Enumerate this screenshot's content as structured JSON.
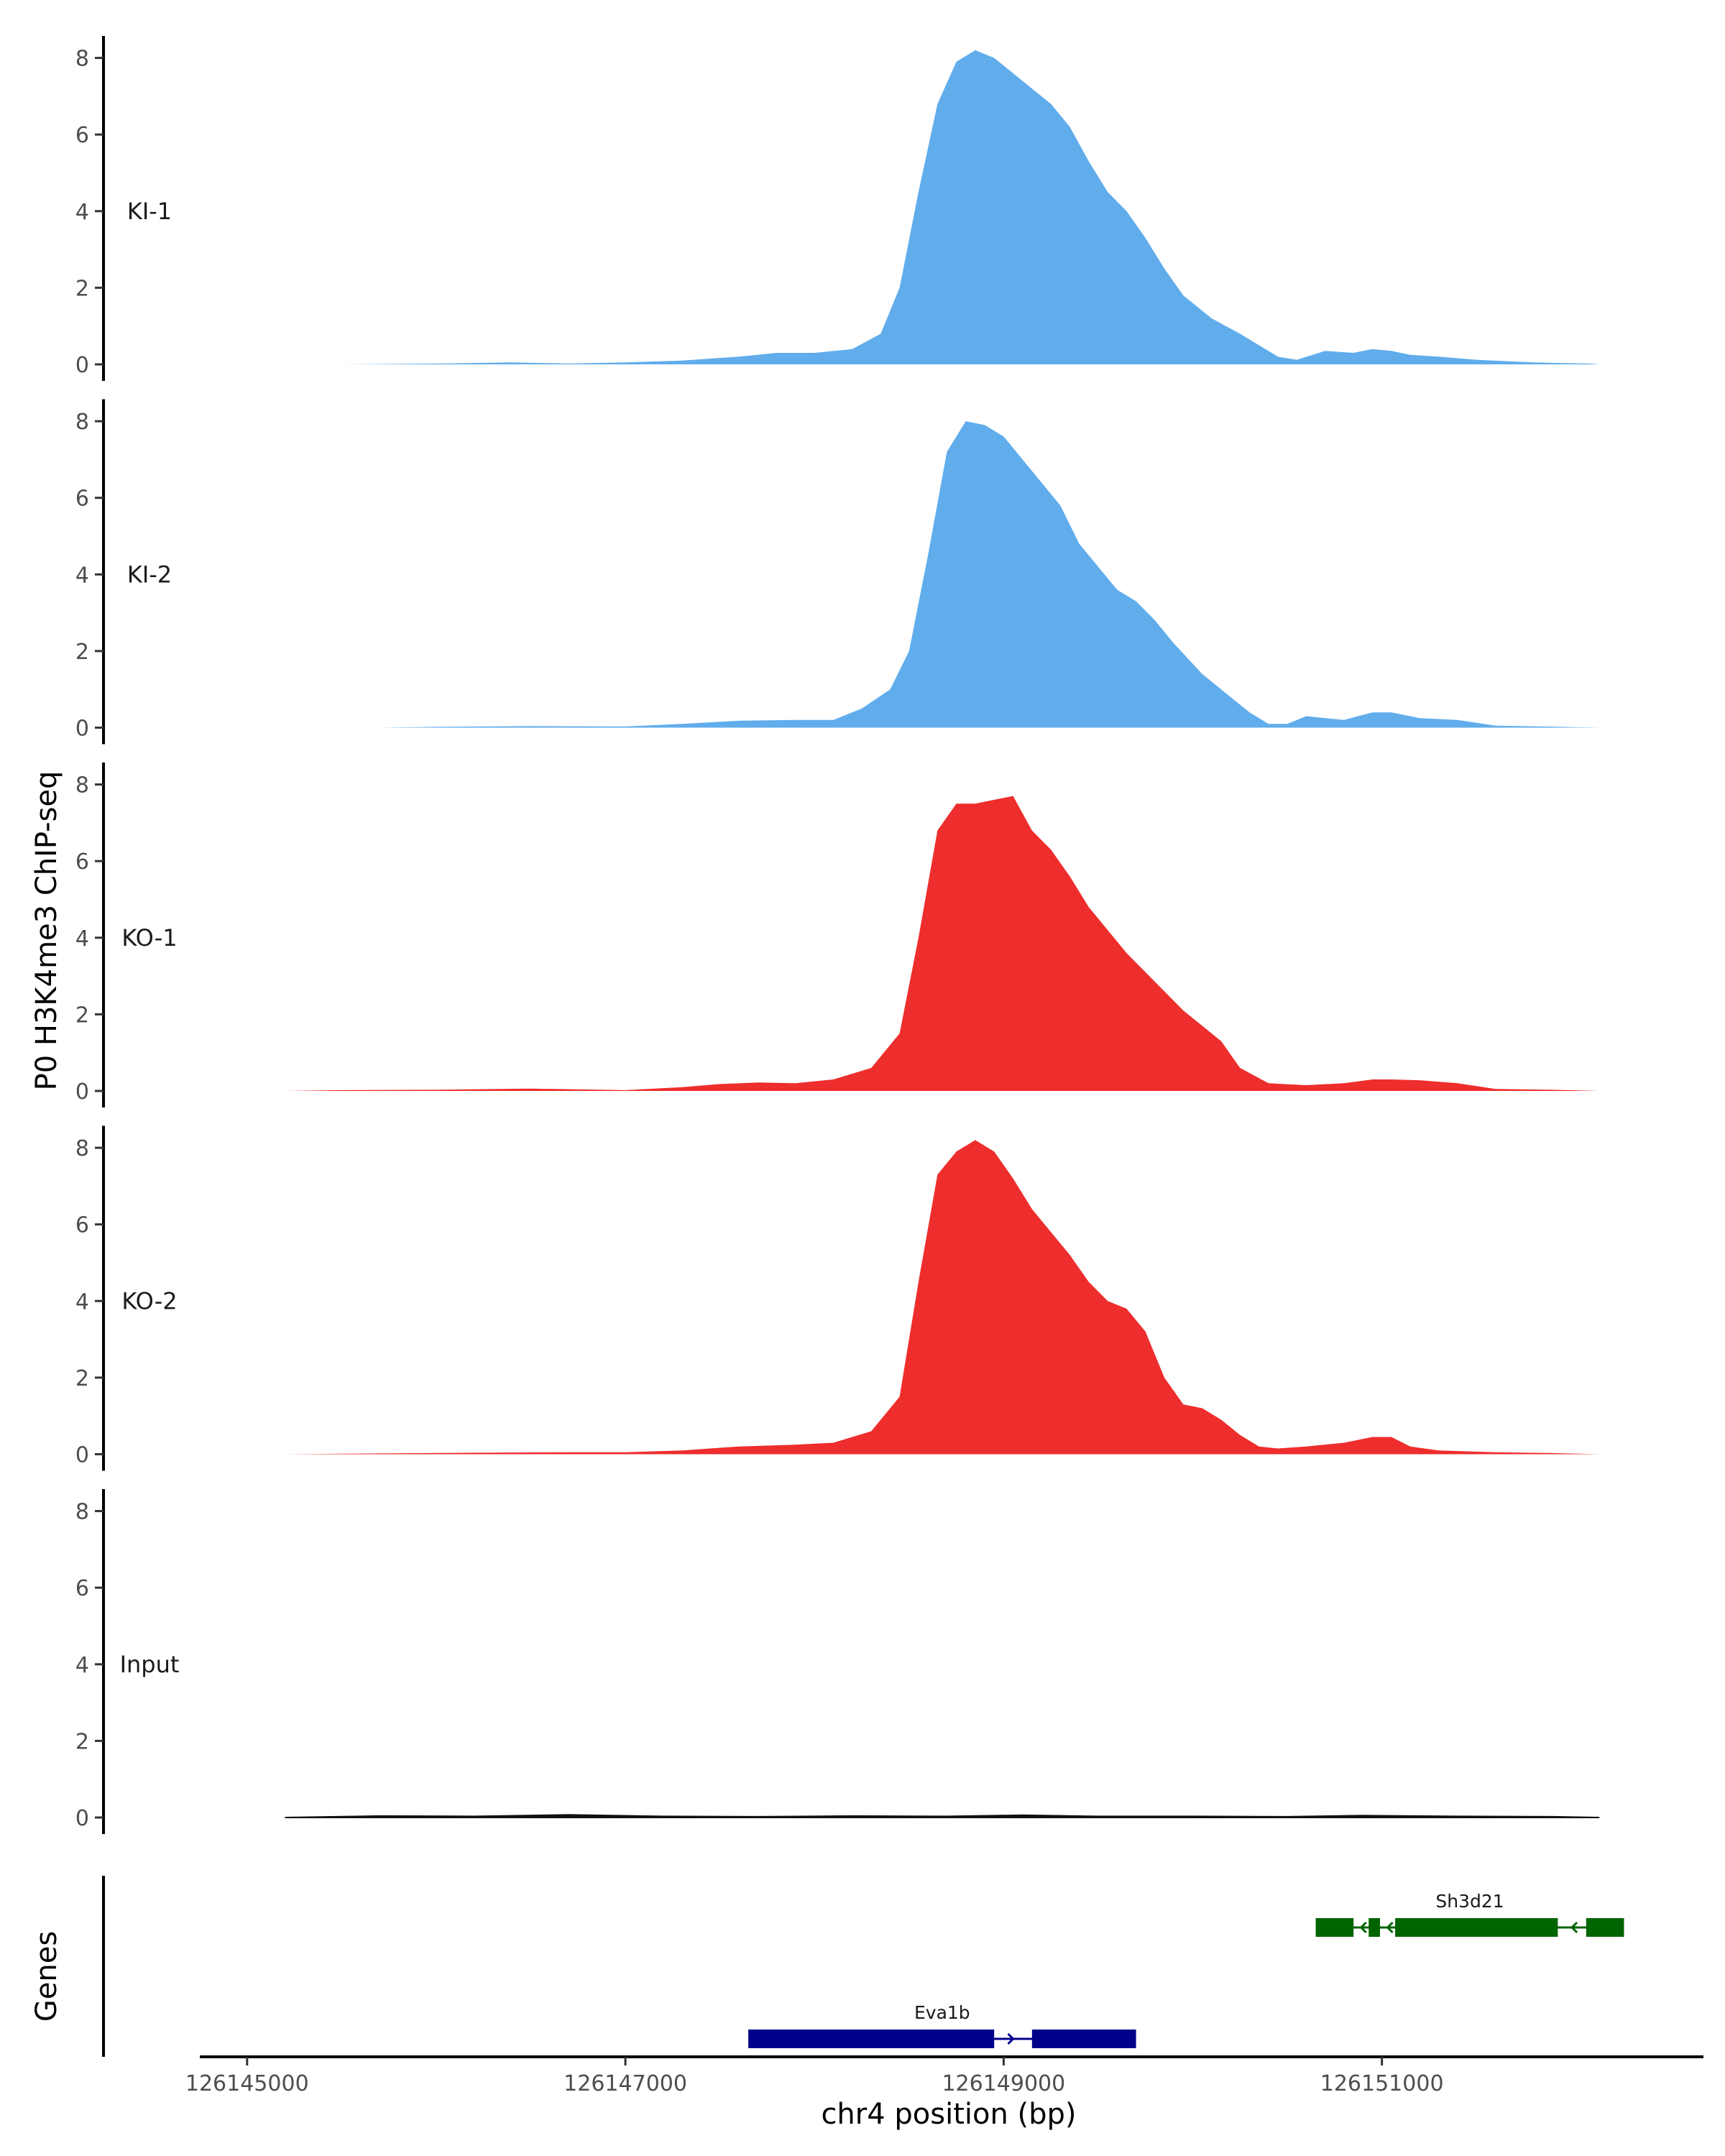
{
  "chart_data": {
    "type": "area",
    "ylabel": "P0 H3K4me3 ChIP-seq",
    "xlabel": "chr4 position (bp)",
    "gene_track_label": "Genes",
    "ylim": [
      0,
      8.5
    ],
    "y_ticks": [
      "0",
      "2",
      "4",
      "6",
      "8"
    ],
    "y_tick_values": [
      0,
      2,
      4,
      6,
      8
    ],
    "xlim": [
      126144750,
      126152700
    ],
    "x_ticks": [
      "126145000",
      "126147000",
      "126149000",
      "126151000"
    ],
    "x_tick_values": [
      126145000,
      126147000,
      126149000,
      126151000
    ],
    "grid": false,
    "legend": "none",
    "tracks": [
      {
        "name": "KI-1",
        "color": "#61adec",
        "points": [
          [
            126145200,
            0
          ],
          [
            126145500,
            0
          ],
          [
            126146000,
            0.02
          ],
          [
            126146400,
            0.05
          ],
          [
            126146700,
            0.02
          ],
          [
            126147000,
            0.05
          ],
          [
            126147300,
            0.1
          ],
          [
            126147600,
            0.2
          ],
          [
            126147800,
            0.3
          ],
          [
            126148000,
            0.3
          ],
          [
            126148200,
            0.4
          ],
          [
            126148350,
            0.8
          ],
          [
            126148450,
            2.0
          ],
          [
            126148550,
            4.5
          ],
          [
            126148650,
            6.8
          ],
          [
            126148750,
            7.9
          ],
          [
            126148850,
            8.2
          ],
          [
            126148950,
            8.0
          ],
          [
            126149050,
            7.6
          ],
          [
            126149150,
            7.2
          ],
          [
            126149250,
            6.8
          ],
          [
            126149350,
            6.2
          ],
          [
            126149450,
            5.3
          ],
          [
            126149550,
            4.5
          ],
          [
            126149650,
            4.0
          ],
          [
            126149750,
            3.3
          ],
          [
            126149850,
            2.5
          ],
          [
            126149950,
            1.8
          ],
          [
            126150100,
            1.2
          ],
          [
            126150250,
            0.8
          ],
          [
            126150350,
            0.5
          ],
          [
            126150450,
            0.2
          ],
          [
            126150550,
            0.12
          ],
          [
            126150700,
            0.35
          ],
          [
            126150850,
            0.3
          ],
          [
            126150950,
            0.4
          ],
          [
            126151050,
            0.35
          ],
          [
            126151150,
            0.25
          ],
          [
            126151300,
            0.2
          ],
          [
            126151500,
            0.12
          ],
          [
            126151800,
            0.05
          ],
          [
            126152100,
            0.02
          ],
          [
            126152150,
            0
          ]
        ]
      },
      {
        "name": "KI-2",
        "color": "#61adec",
        "points": [
          [
            126145200,
            0
          ],
          [
            126145700,
            0
          ],
          [
            126146000,
            0.02
          ],
          [
            126146500,
            0.04
          ],
          [
            126147000,
            0.03
          ],
          [
            126147300,
            0.1
          ],
          [
            126147600,
            0.18
          ],
          [
            126147900,
            0.2
          ],
          [
            126148100,
            0.2
          ],
          [
            126148250,
            0.5
          ],
          [
            126148400,
            1.0
          ],
          [
            126148500,
            2.0
          ],
          [
            126148600,
            4.5
          ],
          [
            126148700,
            7.2
          ],
          [
            126148800,
            8.0
          ],
          [
            126148900,
            7.9
          ],
          [
            126149000,
            7.6
          ],
          [
            126149100,
            7.0
          ],
          [
            126149200,
            6.4
          ],
          [
            126149300,
            5.8
          ],
          [
            126149400,
            4.8
          ],
          [
            126149500,
            4.2
          ],
          [
            126149600,
            3.6
          ],
          [
            126149700,
            3.3
          ],
          [
            126149800,
            2.8
          ],
          [
            126149900,
            2.2
          ],
          [
            126150050,
            1.4
          ],
          [
            126150200,
            0.8
          ],
          [
            126150300,
            0.4
          ],
          [
            126150400,
            0.1
          ],
          [
            126150500,
            0.1
          ],
          [
            126150600,
            0.3
          ],
          [
            126150700,
            0.25
          ],
          [
            126150800,
            0.2
          ],
          [
            126150950,
            0.4
          ],
          [
            126151050,
            0.4
          ],
          [
            126151200,
            0.25
          ],
          [
            126151400,
            0.2
          ],
          [
            126151600,
            0.05
          ],
          [
            126151850,
            0.03
          ],
          [
            126152150,
            0
          ]
        ]
      },
      {
        "name": "KO-1",
        "color": "#ee2d2d",
        "points": [
          [
            126145200,
            0
          ],
          [
            126145500,
            0.02
          ],
          [
            126146000,
            0.03
          ],
          [
            126146500,
            0.06
          ],
          [
            126147000,
            0.02
          ],
          [
            126147300,
            0.1
          ],
          [
            126147500,
            0.18
          ],
          [
            126147700,
            0.22
          ],
          [
            126147900,
            0.2
          ],
          [
            126148100,
            0.3
          ],
          [
            126148300,
            0.6
          ],
          [
            126148450,
            1.5
          ],
          [
            126148550,
            4.0
          ],
          [
            126148650,
            6.8
          ],
          [
            126148750,
            7.5
          ],
          [
            126148850,
            7.5
          ],
          [
            126148950,
            7.6
          ],
          [
            126149050,
            7.7
          ],
          [
            126149150,
            6.8
          ],
          [
            126149250,
            6.3
          ],
          [
            126149350,
            5.6
          ],
          [
            126149450,
            4.8
          ],
          [
            126149550,
            4.2
          ],
          [
            126149650,
            3.6
          ],
          [
            126149750,
            3.1
          ],
          [
            126149850,
            2.6
          ],
          [
            126149950,
            2.1
          ],
          [
            126150050,
            1.7
          ],
          [
            126150150,
            1.3
          ],
          [
            126150250,
            0.6
          ],
          [
            126150400,
            0.2
          ],
          [
            126150600,
            0.15
          ],
          [
            126150800,
            0.2
          ],
          [
            126150950,
            0.3
          ],
          [
            126151050,
            0.3
          ],
          [
            126151200,
            0.28
          ],
          [
            126151400,
            0.2
          ],
          [
            126151600,
            0.05
          ],
          [
            126151900,
            0.03
          ],
          [
            126152150,
            0
          ]
        ]
      },
      {
        "name": "KO-2",
        "color": "#ee2d2d",
        "points": [
          [
            126145200,
            0
          ],
          [
            126145700,
            0.02
          ],
          [
            126146200,
            0.04
          ],
          [
            126146700,
            0.05
          ],
          [
            126147000,
            0.05
          ],
          [
            126147300,
            0.1
          ],
          [
            126147600,
            0.2
          ],
          [
            126147900,
            0.25
          ],
          [
            126148100,
            0.3
          ],
          [
            126148300,
            0.6
          ],
          [
            126148450,
            1.5
          ],
          [
            126148550,
            4.5
          ],
          [
            126148650,
            7.3
          ],
          [
            126148750,
            7.9
          ],
          [
            126148850,
            8.2
          ],
          [
            126148950,
            7.9
          ],
          [
            126149050,
            7.2
          ],
          [
            126149150,
            6.4
          ],
          [
            126149250,
            5.8
          ],
          [
            126149350,
            5.2
          ],
          [
            126149450,
            4.5
          ],
          [
            126149550,
            4.0
          ],
          [
            126149650,
            3.8
          ],
          [
            126149750,
            3.2
          ],
          [
            126149850,
            2.0
          ],
          [
            126149950,
            1.3
          ],
          [
            126150050,
            1.2
          ],
          [
            126150150,
            0.9
          ],
          [
            126150250,
            0.5
          ],
          [
            126150350,
            0.2
          ],
          [
            126150450,
            0.15
          ],
          [
            126150600,
            0.2
          ],
          [
            126150800,
            0.3
          ],
          [
            126150950,
            0.45
          ],
          [
            126151050,
            0.45
          ],
          [
            126151150,
            0.2
          ],
          [
            126151300,
            0.1
          ],
          [
            126151600,
            0.05
          ],
          [
            126151900,
            0.03
          ],
          [
            126152150,
            0
          ]
        ]
      },
      {
        "name": "Input",
        "color": "#111111",
        "points": [
          [
            126145200,
            0
          ],
          [
            126145700,
            0.04
          ],
          [
            126146200,
            0.03
          ],
          [
            126146700,
            0.07
          ],
          [
            126147200,
            0.03
          ],
          [
            126147700,
            0.02
          ],
          [
            126148200,
            0.04
          ],
          [
            126148700,
            0.03
          ],
          [
            126149100,
            0.06
          ],
          [
            126149500,
            0.03
          ],
          [
            126150000,
            0.03
          ],
          [
            126150500,
            0.02
          ],
          [
            126150900,
            0.05
          ],
          [
            126151400,
            0.03
          ],
          [
            126151900,
            0.02
          ],
          [
            126152150,
            0
          ]
        ]
      }
    ],
    "genes": [
      {
        "name": "Eva1b",
        "color": "#00008b",
        "strand": "+",
        "start": 126147650,
        "end": 126149700,
        "exons": [
          [
            126147650,
            126148950
          ],
          [
            126149150,
            126149700
          ]
        ]
      },
      {
        "name": "Sh3d21",
        "color": "#006400",
        "strand": "-",
        "start": 126150650,
        "end": 126152280,
        "exons": [
          [
            126150650,
            126150850
          ],
          [
            126150930,
            126150990
          ],
          [
            126151070,
            126151930
          ],
          [
            126152080,
            126152280
          ]
        ]
      }
    ]
  }
}
